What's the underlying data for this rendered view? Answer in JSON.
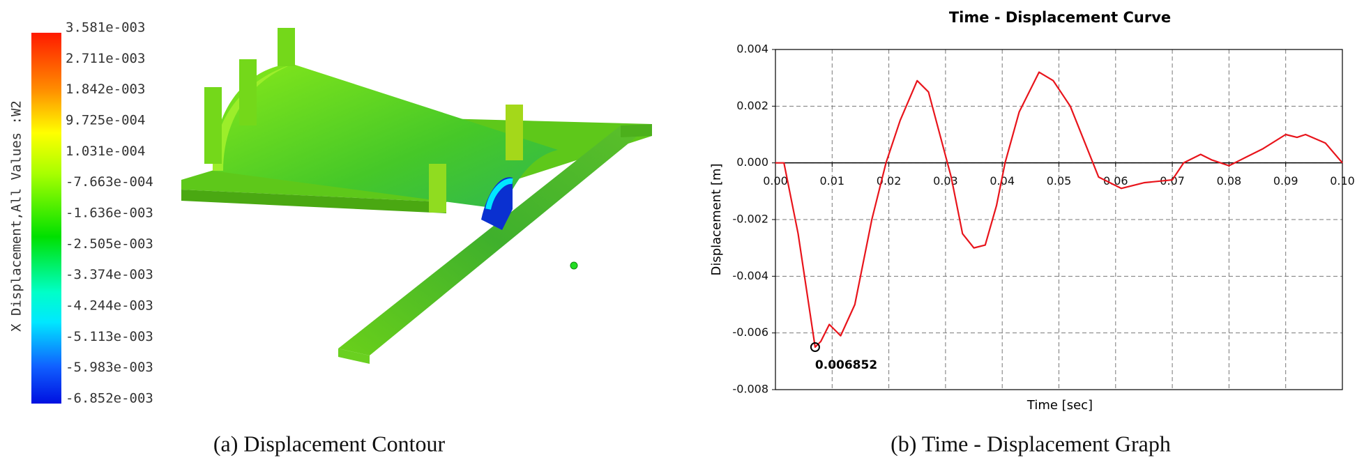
{
  "contour": {
    "legend_title": "X Displacement,All Values :W2",
    "legend_labels": [
      "3.581e-003",
      "2.711e-003",
      "1.842e-003",
      "9.725e-004",
      "1.031e-004",
      "-7.663e-004",
      "-1.636e-003",
      "-2.505e-003",
      "-3.374e-003",
      "-4.244e-003",
      "-5.113e-003",
      "-5.983e-003",
      "-6.852e-003"
    ],
    "caption": "(a) Displacement Contour"
  },
  "chart_data": {
    "type": "line",
    "title": "Time - Displacement Curve",
    "xlabel": "Time [sec]",
    "ylabel": "Displacement [m]",
    "x": [
      0,
      0.0015,
      0.004,
      0.007,
      0.008,
      0.0095,
      0.0115,
      0.014,
      0.017,
      0.0195,
      0.022,
      0.025,
      0.027,
      0.029,
      0.031,
      0.033,
      0.035,
      0.037,
      0.039,
      0.0405,
      0.043,
      0.0465,
      0.049,
      0.052,
      0.055,
      0.057,
      0.061,
      0.065,
      0.07,
      0.072,
      0.075,
      0.077,
      0.08,
      0.083,
      0.086,
      0.09,
      0.092,
      0.0935,
      0.097,
      0.1
    ],
    "series": [
      {
        "name": "Displacement",
        "color": "#e8141b",
        "values": [
          0,
          0,
          -0.0025,
          -0.0065,
          -0.0063,
          -0.0057,
          -0.0061,
          -0.005,
          -0.002,
          0,
          0.0015,
          0.0029,
          0.0025,
          0.001,
          -0.0005,
          -0.0025,
          -0.003,
          -0.0029,
          -0.0015,
          0,
          0.0018,
          0.0032,
          0.0029,
          0.002,
          0.0005,
          -0.0005,
          -0.0009,
          -0.0007,
          -0.0006,
          0,
          0.0003,
          0.0001,
          -0.0001,
          0.0002,
          0.0005,
          0.001,
          0.0009,
          0.001,
          0.0007,
          0
        ]
      }
    ],
    "annotation": "0.006852",
    "xlim": [
      0,
      0.1
    ],
    "ylim": [
      -0.008,
      0.004
    ],
    "xticks": [
      {
        "value": 0,
        "label": "0.00"
      },
      0.01,
      0.02,
      0.03,
      0.04,
      0.05,
      0.06,
      0.07,
      0.08,
      0.09,
      {
        "value": 0.1,
        "label": "0.10"
      }
    ],
    "yticks": [
      -0.008,
      -0.006,
      -0.004,
      -0.002,
      {
        "value": 0,
        "label": "0.000"
      },
      0.002,
      0.004
    ],
    "grid": true,
    "caption": "(b) Time - Displacement Graph"
  }
}
